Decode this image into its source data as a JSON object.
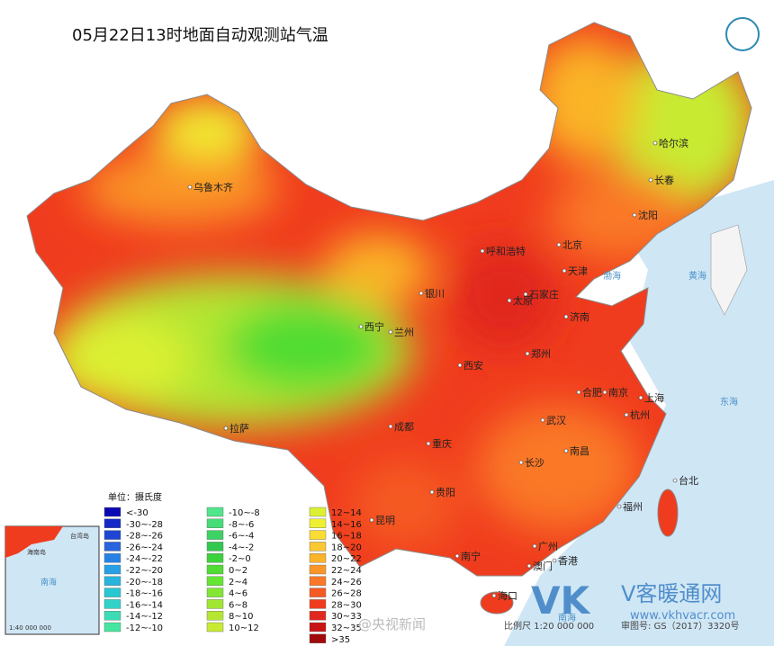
{
  "title": "05月22日13时地面自动观测站气温",
  "legend": {
    "unit": "单位：摄氏度",
    "items": [
      {
        "label": "<-30",
        "color": "#0a0ab4"
      },
      {
        "label": "-30~-28",
        "color": "#1428c8"
      },
      {
        "label": "-28~-26",
        "color": "#1e46d2"
      },
      {
        "label": "-26~-24",
        "color": "#2864dc"
      },
      {
        "label": "-24~-22",
        "color": "#2882e6"
      },
      {
        "label": "-22~-20",
        "color": "#28a0e6"
      },
      {
        "label": "-20~-18",
        "color": "#28b4dc"
      },
      {
        "label": "-18~-16",
        "color": "#28c8d2"
      },
      {
        "label": "-16~-14",
        "color": "#32d2c8"
      },
      {
        "label": "-14~-12",
        "color": "#3cdcb4"
      },
      {
        "label": "-12~-10",
        "color": "#46e6a0"
      },
      {
        "label": "-10~-8",
        "color": "#50e68c"
      },
      {
        "label": "-8~-6",
        "color": "#46dc78"
      },
      {
        "label": "-6~-4",
        "color": "#3cd264"
      },
      {
        "label": "-4~-2",
        "color": "#32c850"
      },
      {
        "label": "-2~0",
        "color": "#3cd23c"
      },
      {
        "label": "0~2",
        "color": "#50dc32"
      },
      {
        "label": "2~4",
        "color": "#64e632"
      },
      {
        "label": "4~6",
        "color": "#82e632"
      },
      {
        "label": "6~8",
        "color": "#a0e632"
      },
      {
        "label": "8~10",
        "color": "#b4e632"
      },
      {
        "label": "10~12",
        "color": "#c8eb32"
      },
      {
        "label": "12~14",
        "color": "#dcf032"
      },
      {
        "label": "14~16",
        "color": "#f0f032"
      },
      {
        "label": "16~18",
        "color": "#fadc32"
      },
      {
        "label": "18~20",
        "color": "#fac832"
      },
      {
        "label": "20~22",
        "color": "#fab428"
      },
      {
        "label": "22~24",
        "color": "#fa9628"
      },
      {
        "label": "24~26",
        "color": "#fa7828"
      },
      {
        "label": "26~28",
        "color": "#f55a23"
      },
      {
        "label": "28~30",
        "color": "#f03c1e"
      },
      {
        "label": "30~33",
        "color": "#e1281e"
      },
      {
        "label": "32~35",
        "color": "#c81414"
      },
      {
        "label": ">35",
        "color": "#a00a0a"
      }
    ]
  },
  "cities": [
    "乌鲁木齐",
    "哈尔滨",
    "长春",
    "沈阳",
    "呼和浩特",
    "北京",
    "天津",
    "银川",
    "太原",
    "石家庄",
    "济南",
    "西宁",
    "兰州",
    "西安",
    "郑州",
    "合肥",
    "南京",
    "上海",
    "杭州",
    "武汉",
    "成都",
    "重庆",
    "长沙",
    "南昌",
    "拉萨",
    "贵阳",
    "昆明",
    "福州",
    "台北",
    "南宁",
    "广州",
    "香港",
    "澳门",
    "海口"
  ],
  "seas": [
    "黄海",
    "东海",
    "南海",
    "渤海"
  ],
  "inset": {
    "labels": [
      "台湾岛",
      "海南岛",
      "南海",
      "1:40 000 000"
    ]
  },
  "footer": {
    "scale": "比例尺 1:20 000 000",
    "approval": "审图号: GS（2017）3320号"
  },
  "watermarks": {
    "weibo": "@央视新闻",
    "logo": "VK",
    "site_name": "V客暖通网",
    "url": "www.vkhvacr.com"
  }
}
